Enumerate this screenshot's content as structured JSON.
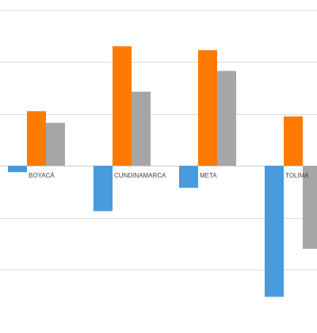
{
  "chart_data": {
    "type": "bar",
    "categories": [
      "BOYACÁ",
      "CUNDINAMARCA",
      "META",
      "TOLIMA"
    ],
    "series": [
      {
        "color": "#4a9ade",
        "values": [
          -0.25,
          -1.75,
          -0.85,
          -5.05
        ]
      },
      {
        "color": "#ff7a00",
        "values": [
          2.1,
          4.6,
          4.45,
          1.9
        ]
      },
      {
        "color": "#a6a6a6",
        "values": [
          1.65,
          2.85,
          3.65,
          -3.2
        ]
      }
    ],
    "ylim": [
      -6,
      6
    ],
    "grid": true,
    "gridlines": [
      -4,
      -2,
      0,
      2,
      4,
      6
    ],
    "title": "",
    "xlabel": "",
    "ylabel": ""
  }
}
